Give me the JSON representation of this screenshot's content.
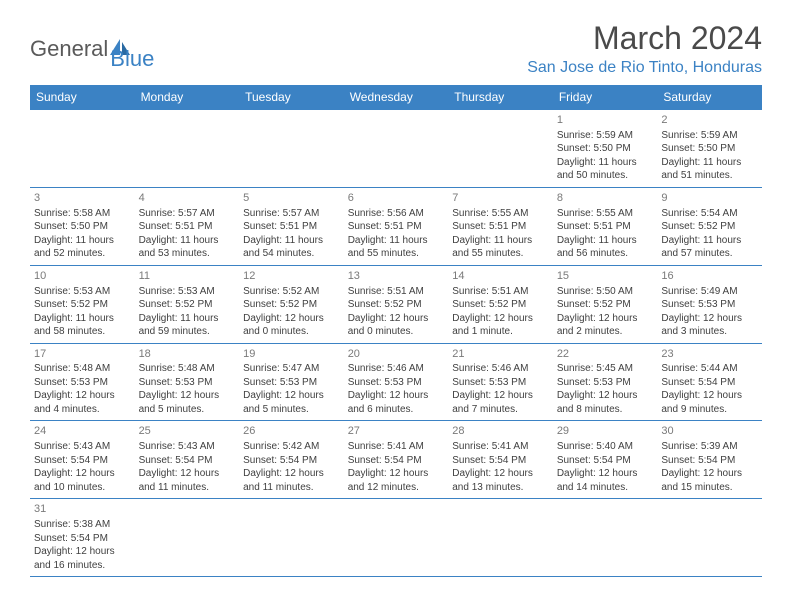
{
  "brand": {
    "name_part1": "General",
    "name_part2": "Blue",
    "icon_color": "#3b82c4"
  },
  "title": "March 2024",
  "location": "San Jose de Rio Tinto, Honduras",
  "header_bg": "#3b82c4",
  "header_fg": "#ffffff",
  "cell_border": "#3b82c4",
  "text_color": "#404040",
  "day_headers": [
    "Sunday",
    "Monday",
    "Tuesday",
    "Wednesday",
    "Thursday",
    "Friday",
    "Saturday"
  ],
  "weeks": [
    [
      null,
      null,
      null,
      null,
      null,
      {
        "n": "1",
        "sr": "5:59 AM",
        "ss": "5:50 PM",
        "dl": "11 hours and 50 minutes."
      },
      {
        "n": "2",
        "sr": "5:59 AM",
        "ss": "5:50 PM",
        "dl": "11 hours and 51 minutes."
      }
    ],
    [
      {
        "n": "3",
        "sr": "5:58 AM",
        "ss": "5:50 PM",
        "dl": "11 hours and 52 minutes."
      },
      {
        "n": "4",
        "sr": "5:57 AM",
        "ss": "5:51 PM",
        "dl": "11 hours and 53 minutes."
      },
      {
        "n": "5",
        "sr": "5:57 AM",
        "ss": "5:51 PM",
        "dl": "11 hours and 54 minutes."
      },
      {
        "n": "6",
        "sr": "5:56 AM",
        "ss": "5:51 PM",
        "dl": "11 hours and 55 minutes."
      },
      {
        "n": "7",
        "sr": "5:55 AM",
        "ss": "5:51 PM",
        "dl": "11 hours and 55 minutes."
      },
      {
        "n": "8",
        "sr": "5:55 AM",
        "ss": "5:51 PM",
        "dl": "11 hours and 56 minutes."
      },
      {
        "n": "9",
        "sr": "5:54 AM",
        "ss": "5:52 PM",
        "dl": "11 hours and 57 minutes."
      }
    ],
    [
      {
        "n": "10",
        "sr": "5:53 AM",
        "ss": "5:52 PM",
        "dl": "11 hours and 58 minutes."
      },
      {
        "n": "11",
        "sr": "5:53 AM",
        "ss": "5:52 PM",
        "dl": "11 hours and 59 minutes."
      },
      {
        "n": "12",
        "sr": "5:52 AM",
        "ss": "5:52 PM",
        "dl": "12 hours and 0 minutes."
      },
      {
        "n": "13",
        "sr": "5:51 AM",
        "ss": "5:52 PM",
        "dl": "12 hours and 0 minutes."
      },
      {
        "n": "14",
        "sr": "5:51 AM",
        "ss": "5:52 PM",
        "dl": "12 hours and 1 minute."
      },
      {
        "n": "15",
        "sr": "5:50 AM",
        "ss": "5:52 PM",
        "dl": "12 hours and 2 minutes."
      },
      {
        "n": "16",
        "sr": "5:49 AM",
        "ss": "5:53 PM",
        "dl": "12 hours and 3 minutes."
      }
    ],
    [
      {
        "n": "17",
        "sr": "5:48 AM",
        "ss": "5:53 PM",
        "dl": "12 hours and 4 minutes."
      },
      {
        "n": "18",
        "sr": "5:48 AM",
        "ss": "5:53 PM",
        "dl": "12 hours and 5 minutes."
      },
      {
        "n": "19",
        "sr": "5:47 AM",
        "ss": "5:53 PM",
        "dl": "12 hours and 5 minutes."
      },
      {
        "n": "20",
        "sr": "5:46 AM",
        "ss": "5:53 PM",
        "dl": "12 hours and 6 minutes."
      },
      {
        "n": "21",
        "sr": "5:46 AM",
        "ss": "5:53 PM",
        "dl": "12 hours and 7 minutes."
      },
      {
        "n": "22",
        "sr": "5:45 AM",
        "ss": "5:53 PM",
        "dl": "12 hours and 8 minutes."
      },
      {
        "n": "23",
        "sr": "5:44 AM",
        "ss": "5:54 PM",
        "dl": "12 hours and 9 minutes."
      }
    ],
    [
      {
        "n": "24",
        "sr": "5:43 AM",
        "ss": "5:54 PM",
        "dl": "12 hours and 10 minutes."
      },
      {
        "n": "25",
        "sr": "5:43 AM",
        "ss": "5:54 PM",
        "dl": "12 hours and 11 minutes."
      },
      {
        "n": "26",
        "sr": "5:42 AM",
        "ss": "5:54 PM",
        "dl": "12 hours and 11 minutes."
      },
      {
        "n": "27",
        "sr": "5:41 AM",
        "ss": "5:54 PM",
        "dl": "12 hours and 12 minutes."
      },
      {
        "n": "28",
        "sr": "5:41 AM",
        "ss": "5:54 PM",
        "dl": "12 hours and 13 minutes."
      },
      {
        "n": "29",
        "sr": "5:40 AM",
        "ss": "5:54 PM",
        "dl": "12 hours and 14 minutes."
      },
      {
        "n": "30",
        "sr": "5:39 AM",
        "ss": "5:54 PM",
        "dl": "12 hours and 15 minutes."
      }
    ],
    [
      {
        "n": "31",
        "sr": "5:38 AM",
        "ss": "5:54 PM",
        "dl": "12 hours and 16 minutes."
      },
      null,
      null,
      null,
      null,
      null,
      null
    ]
  ],
  "labels": {
    "sunrise": "Sunrise:",
    "sunset": "Sunset:",
    "daylight": "Daylight:"
  }
}
